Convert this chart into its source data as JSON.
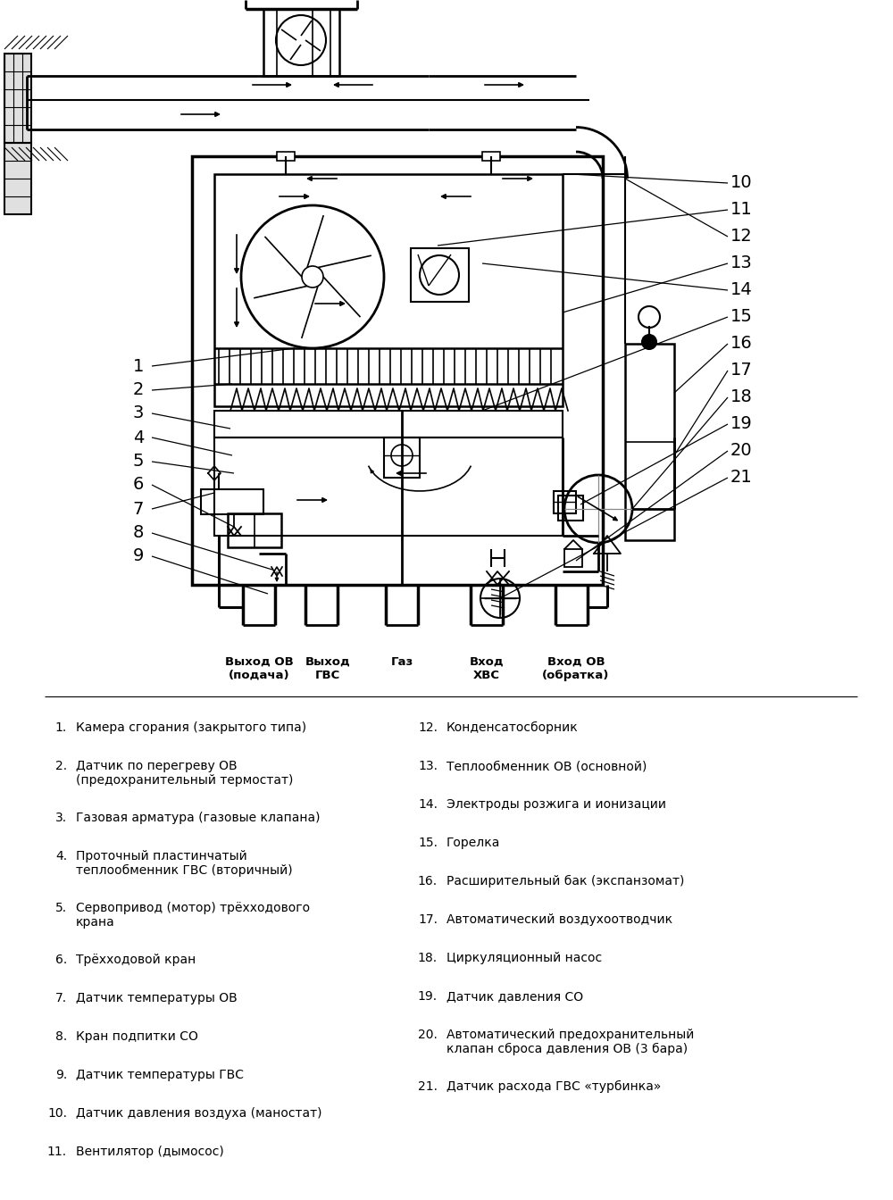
{
  "bg_color": "#ffffff",
  "labels_left": [
    [
      1,
      "Камера сгорания (закрытого типа)"
    ],
    [
      2,
      "Датчик по перегреву ОВ\n(предохранительный термостат)"
    ],
    [
      3,
      "Газовая арматура (газовые клапана)"
    ],
    [
      4,
      "Проточный пластинчатый\nтеплообменник ГВС (вторичный)"
    ],
    [
      5,
      "Сервопривод (мотор) трёхходового\nкрана"
    ],
    [
      6,
      "Трёхходовой кран"
    ],
    [
      7,
      "Датчик температуры ОВ"
    ],
    [
      8,
      "Кран подпитки СО"
    ],
    [
      9,
      "Датчик температуры ГВС"
    ],
    [
      10,
      "Датчик давления воздуха (маностат)"
    ],
    [
      11,
      "Вентилятор (дымосос)"
    ]
  ],
  "labels_right": [
    [
      12,
      "Конденсатосборник"
    ],
    [
      13,
      "Теплообменник ОВ (основной)"
    ],
    [
      14,
      "Электроды розжига и ионизации"
    ],
    [
      15,
      "Горелка"
    ],
    [
      16,
      "Расширительный бак (экспанзомат)"
    ],
    [
      17,
      "Автоматический воздухоотводчик"
    ],
    [
      18,
      "Циркуляционный насос"
    ],
    [
      19,
      "Датчик давления СО"
    ],
    [
      20,
      "Автоматический предохранительный\nклапан сброса давления ОВ (3 бара)"
    ],
    [
      21,
      "Датчик расхода ГВС «турбинка»"
    ]
  ]
}
